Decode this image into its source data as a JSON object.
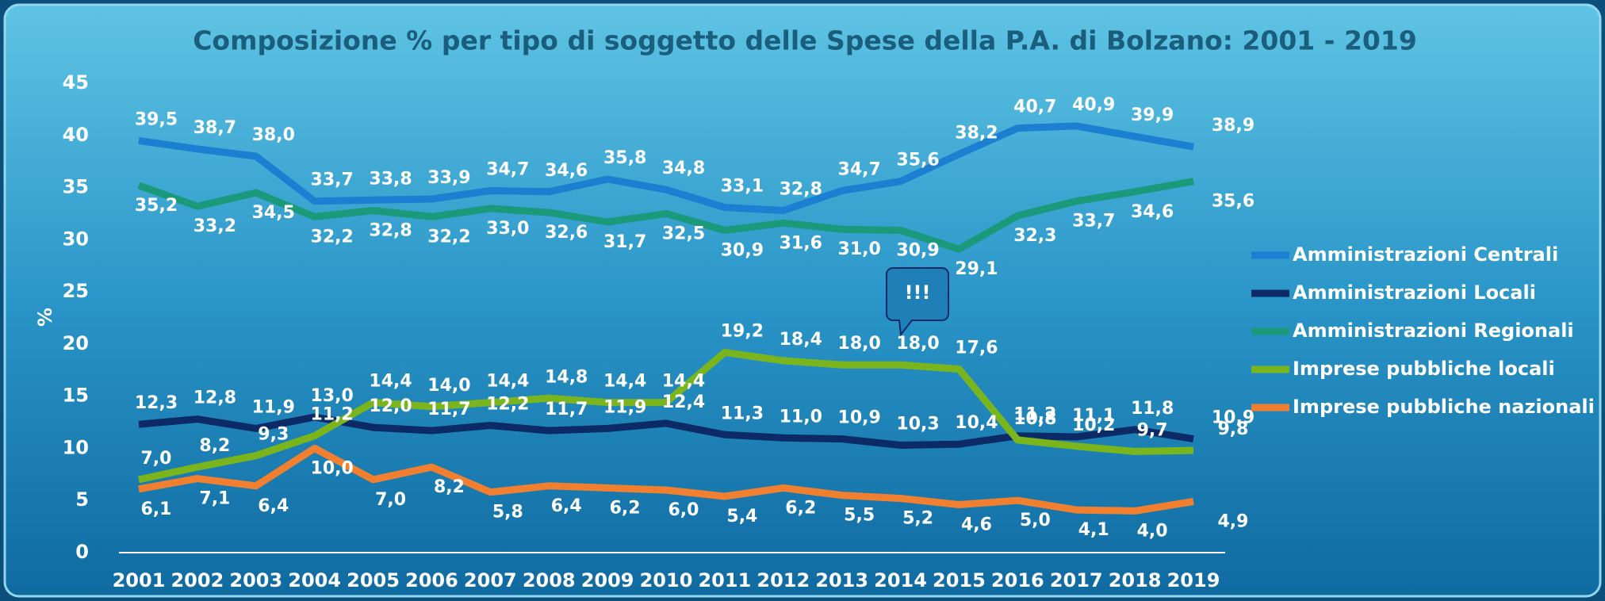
{
  "chart_data": {
    "type": "line",
    "title": "Composizione % per tipo di soggetto delle Spese della P.A. di Bolzano: 2001 - 2019",
    "y_label": "%",
    "annotation": "!!!",
    "categories": [
      "2001",
      "2002",
      "2003",
      "2004",
      "2005",
      "2006",
      "2007",
      "2008",
      "2009",
      "2010",
      "2011",
      "2012",
      "2013",
      "2014",
      "2015",
      "2016",
      "2017",
      "2018",
      "2019"
    ],
    "ylim": [
      0,
      45
    ],
    "yticks": [
      0,
      5,
      10,
      15,
      20,
      25,
      30,
      35,
      40,
      45
    ],
    "legend": "right",
    "series": [
      {
        "name": "Amministrazioni Centrali",
        "color": "#1b80d2",
        "values": [
          39.5,
          38.7,
          38.0,
          33.7,
          33.8,
          33.9,
          34.7,
          34.6,
          35.8,
          34.8,
          33.1,
          32.8,
          34.7,
          35.6,
          38.2,
          40.7,
          40.9,
          39.9,
          38.9
        ],
        "value_labels": [
          "39,5",
          "38,7",
          "38,0",
          "33,7",
          "33,8",
          "33,9",
          "34,7",
          "34,6",
          "35,8",
          "34,8",
          "33,1",
          "32,8",
          "34,7",
          "35,6",
          "38,2",
          "40,7",
          "40,9",
          "39,9",
          "38,9"
        ]
      },
      {
        "name": "Amministrazioni Locali",
        "color": "#0b2a66",
        "values": [
          12.3,
          12.8,
          11.9,
          13.0,
          12.0,
          11.7,
          12.2,
          11.7,
          11.9,
          12.4,
          11.3,
          11.0,
          10.9,
          10.3,
          10.4,
          11.2,
          11.1,
          11.8,
          10.9
        ],
        "value_labels": [
          "12,3",
          "12,8",
          "11,9",
          "13,0",
          "12,0",
          "11,7",
          "12,2",
          "11,7",
          "11,9",
          "12,4",
          "11,3",
          "11,0",
          "10,9",
          "10,3",
          "10,4",
          "11,2",
          "11,1",
          "11,8",
          "10,9"
        ]
      },
      {
        "name": "Amministrazioni Regionali",
        "color": "#1a9a7a",
        "values": [
          35.2,
          33.2,
          34.5,
          32.2,
          32.8,
          32.2,
          33.0,
          32.6,
          31.7,
          32.5,
          30.9,
          31.6,
          31.0,
          30.9,
          29.1,
          32.3,
          33.7,
          34.6,
          35.6
        ],
        "value_labels": [
          "35,2",
          "33,2",
          "34,5",
          "32,2",
          "32,8",
          "32,2",
          "33,0",
          "32,6",
          "31,7",
          "32,5",
          "30,9",
          "31,6",
          "31,0",
          "30,9",
          "29,1",
          "32,3",
          "33,7",
          "34,6",
          "35,6"
        ]
      },
      {
        "name": "Imprese pubbliche locali",
        "color": "#7ab51d",
        "values": [
          7.0,
          8.2,
          9.3,
          11.2,
          14.4,
          14.0,
          14.4,
          14.8,
          14.4,
          14.4,
          19.2,
          18.4,
          18.0,
          18.0,
          17.6,
          10.8,
          10.2,
          9.7,
          9.8
        ],
        "value_labels": [
          "7,0",
          "8,2",
          "9,3",
          "11,2",
          "14,4",
          "14,0",
          "14,4",
          "14,8",
          "14,4",
          "14,4",
          "19,2",
          "18,4",
          "18,0",
          "18,0",
          "17,6",
          "10,8",
          "10,2",
          "9,7",
          "9,8"
        ]
      },
      {
        "name": "Imprese pubbliche nazionali",
        "color": "#f08030",
        "values": [
          6.1,
          7.1,
          6.4,
          10.0,
          7.0,
          8.2,
          5.8,
          6.4,
          6.2,
          6.0,
          5.4,
          6.2,
          5.5,
          5.2,
          4.6,
          5.0,
          4.1,
          4.0,
          4.9
        ],
        "value_labels": [
          "6,1",
          "7,1",
          "6,4",
          "10,0",
          "7,0",
          "8,2",
          "5,8",
          "6,4",
          "6,2",
          "6,0",
          "5,4",
          "6,2",
          "5,5",
          "5,2",
          "4,6",
          "5,0",
          "4,1",
          "4,0",
          "4,9"
        ]
      }
    ]
  }
}
